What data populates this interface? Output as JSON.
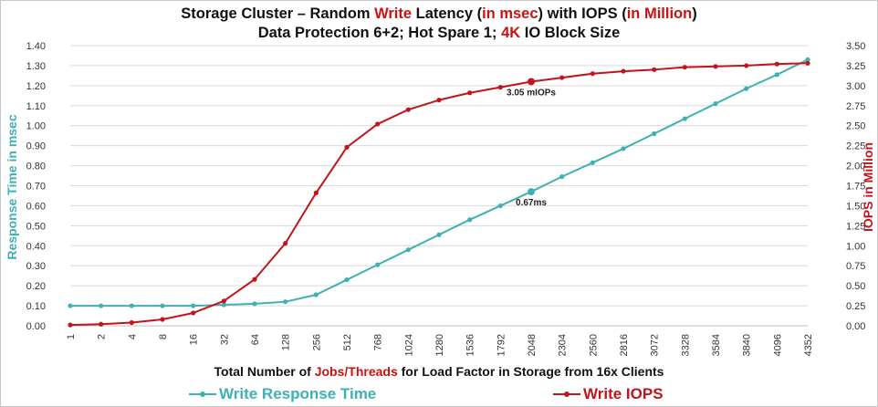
{
  "title": {
    "line1": [
      {
        "text": "Storage Cluster – Random ",
        "color": "#111111"
      },
      {
        "text": "Write",
        "color": "#cc1111"
      },
      {
        "text": " Latency (",
        "color": "#111111"
      },
      {
        "text": "in msec",
        "color": "#cc1111"
      },
      {
        "text": ") with IOPS (",
        "color": "#111111"
      },
      {
        "text": "in Million",
        "color": "#cc1111"
      },
      {
        "text": ")",
        "color": "#111111"
      }
    ],
    "line2": [
      {
        "text": "Data Protection 6+2; Hot Spare 1; ",
        "color": "#111111"
      },
      {
        "text": "4K",
        "color": "#cc1111"
      },
      {
        "text": " IO Block Size",
        "color": "#111111"
      }
    ]
  },
  "xlabel": {
    "before": "Total Number of ",
    "highlight": "Jobs/Threads",
    "after": " for Load Factor in  Storage from 16x Clients"
  },
  "legend": {
    "latency": "Write Response Time",
    "iops": "Write IOPS"
  },
  "colors": {
    "latency": "#3fb1b1",
    "iops": "#c0151d",
    "grid": "#d9d9d9"
  },
  "chart_data": {
    "type": "line",
    "title": "Storage Cluster – Random Write Latency (in msec) with IOPS (in Million) / Data Protection 6+2; Hot Spare 1; 4K IO Block Size",
    "xlabel": "Total Number of Jobs/Threads for Load Factor in  Storage from 16x Clients",
    "ylabel_left": "Response Time in msec",
    "ylabel_right": "IOPS in Million",
    "ylim_left": [
      0,
      1.4
    ],
    "ylim_right": [
      0,
      3.5
    ],
    "yticks_left": [
      "0.00",
      "0.10",
      "0.20",
      "0.30",
      "0.40",
      "0.50",
      "0.60",
      "0.70",
      "0.80",
      "0.90",
      "1.00",
      "1.10",
      "1.20",
      "1.30",
      "1.40"
    ],
    "yticks_right": [
      "0.00",
      "0.25",
      "0.50",
      "0.75",
      "1.00",
      "1.25",
      "1.50",
      "1.75",
      "2.00",
      "2.25",
      "2.50",
      "2.75",
      "3.00",
      "3.25",
      "3.50"
    ],
    "grid": true,
    "legend_position": "bottom",
    "categories": [
      "1",
      "2",
      "4",
      "8",
      "16",
      "32",
      "64",
      "128",
      "256",
      "512",
      "768",
      "1024",
      "1280",
      "1536",
      "1792",
      "2048",
      "2304",
      "2560",
      "2816",
      "3072",
      "3328",
      "3584",
      "3840",
      "4096",
      "4352"
    ],
    "series": [
      {
        "name": "Write Response Time",
        "axis": "left",
        "values": [
          0.1,
          0.1,
          0.1,
          0.1,
          0.1,
          0.105,
          0.11,
          0.12,
          0.155,
          0.23,
          0.305,
          0.38,
          0.455,
          0.53,
          0.6,
          0.67,
          0.745,
          0.815,
          0.885,
          0.96,
          1.035,
          1.11,
          1.185,
          1.255,
          1.33
        ]
      },
      {
        "name": "Write IOPS",
        "axis": "right",
        "values": [
          0.01,
          0.02,
          0.04,
          0.08,
          0.16,
          0.31,
          0.58,
          1.03,
          1.66,
          2.23,
          2.52,
          2.7,
          2.82,
          2.91,
          2.98,
          3.05,
          3.1,
          3.15,
          3.18,
          3.2,
          3.23,
          3.24,
          3.25,
          3.27,
          3.28
        ]
      }
    ],
    "annotations": [
      {
        "series": "Write IOPS",
        "category": "2048",
        "text": "3.05 mIOPs"
      },
      {
        "series": "Write Response Time",
        "category": "2048",
        "text": "0.67ms"
      }
    ]
  }
}
